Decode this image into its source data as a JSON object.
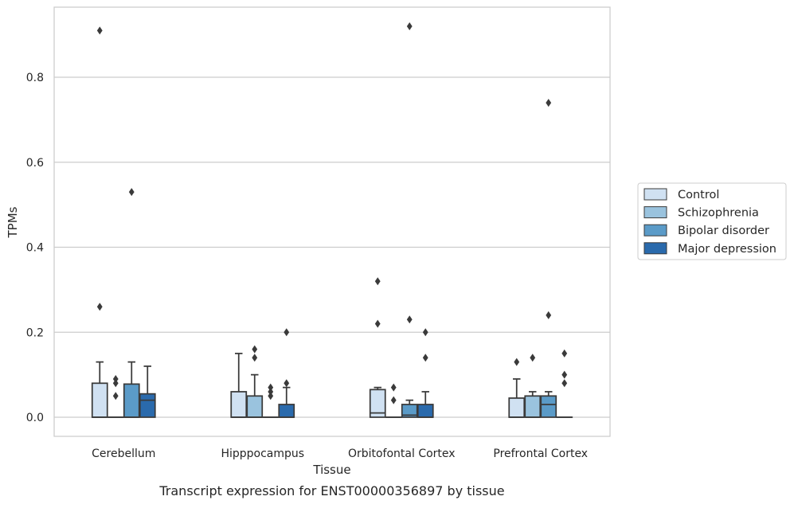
{
  "chart_data": {
    "type": "boxplot",
    "title": "",
    "caption": "Transcript expression for ENST00000356897 by tissue",
    "xlabel": "Tissue",
    "ylabel": "TPMs",
    "ylim": [
      -0.045,
      0.965
    ],
    "yticks": [
      0.0,
      0.2,
      0.4,
      0.6,
      0.8
    ],
    "ytick_labels": [
      "0.0",
      "0.2",
      "0.4",
      "0.6",
      "0.8"
    ],
    "grid": "horizontal",
    "legend_position": "right",
    "categories": [
      "Cerebellum",
      "Hipppocampus",
      "Orbitofontal Cortex",
      "Prefrontal Cortex"
    ],
    "series": [
      {
        "name": "Control",
        "color": "#d0e1f2",
        "boxes": [
          {
            "q1": 0.0,
            "median": 0.0,
            "q3": 0.08,
            "whisker_low": 0.0,
            "whisker_high": 0.13,
            "outliers": [
              0.26,
              0.91
            ]
          },
          {
            "q1": 0.0,
            "median": 0.0,
            "q3": 0.06,
            "whisker_low": 0.0,
            "whisker_high": 0.15,
            "outliers": []
          },
          {
            "q1": 0.0,
            "median": 0.01,
            "q3": 0.065,
            "whisker_low": 0.0,
            "whisker_high": 0.07,
            "outliers": [
              0.22,
              0.32
            ]
          },
          {
            "q1": 0.0,
            "median": 0.0,
            "q3": 0.045,
            "whisker_low": 0.0,
            "whisker_high": 0.09,
            "outliers": [
              0.13
            ]
          }
        ]
      },
      {
        "name": "Schizophrenia",
        "color": "#9ac3de",
        "boxes": [
          {
            "q1": 0.0,
            "median": 0.0,
            "q3": 0.0,
            "whisker_low": 0.0,
            "whisker_high": 0.0,
            "outliers": [
              0.05,
              0.08,
              0.09
            ]
          },
          {
            "q1": 0.0,
            "median": 0.0,
            "q3": 0.05,
            "whisker_low": 0.0,
            "whisker_high": 0.1,
            "outliers": [
              0.14,
              0.16
            ]
          },
          {
            "q1": 0.0,
            "median": 0.0,
            "q3": 0.0,
            "whisker_low": 0.0,
            "whisker_high": 0.0,
            "outliers": [
              0.04,
              0.07
            ]
          },
          {
            "q1": 0.0,
            "median": 0.0,
            "q3": 0.05,
            "whisker_low": 0.0,
            "whisker_high": 0.06,
            "outliers": [
              0.14
            ]
          }
        ]
      },
      {
        "name": "Bipolar disorder",
        "color": "#5b9bc8",
        "boxes": [
          {
            "q1": 0.0,
            "median": 0.0,
            "q3": 0.078,
            "whisker_low": 0.0,
            "whisker_high": 0.13,
            "outliers": [
              0.53
            ]
          },
          {
            "q1": 0.0,
            "median": 0.0,
            "q3": 0.0,
            "whisker_low": 0.0,
            "whisker_high": 0.0,
            "outliers": [
              0.05,
              0.06,
              0.07
            ]
          },
          {
            "q1": 0.0,
            "median": 0.005,
            "q3": 0.03,
            "whisker_low": 0.0,
            "whisker_high": 0.04,
            "outliers": [
              0.23,
              0.92
            ]
          },
          {
            "q1": 0.0,
            "median": 0.03,
            "q3": 0.05,
            "whisker_low": 0.0,
            "whisker_high": 0.06,
            "outliers": [
              0.24,
              0.74
            ]
          }
        ]
      },
      {
        "name": "Major depression",
        "color": "#2a6aac",
        "boxes": [
          {
            "q1": 0.0,
            "median": 0.04,
            "q3": 0.055,
            "whisker_low": 0.0,
            "whisker_high": 0.12,
            "outliers": []
          },
          {
            "q1": 0.0,
            "median": 0.0,
            "q3": 0.03,
            "whisker_low": 0.0,
            "whisker_high": 0.07,
            "outliers": [
              0.08,
              0.2
            ]
          },
          {
            "q1": 0.0,
            "median": 0.0,
            "q3": 0.03,
            "whisker_low": 0.0,
            "whisker_high": 0.06,
            "outliers": [
              0.14,
              0.2
            ]
          },
          {
            "q1": 0.0,
            "median": 0.0,
            "q3": 0.0,
            "whisker_low": 0.0,
            "whisker_high": 0.0,
            "outliers": [
              0.08,
              0.1,
              0.15
            ]
          }
        ]
      }
    ]
  }
}
